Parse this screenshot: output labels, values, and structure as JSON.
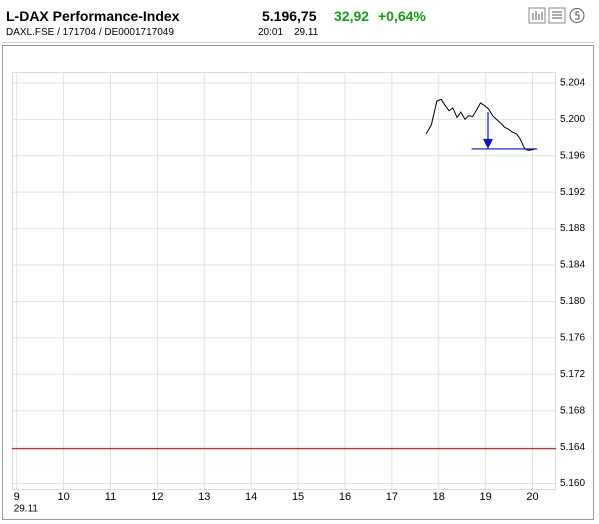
{
  "header": {
    "title": "L-DAX Performance-Index",
    "price": "5.196,75",
    "change": "32,92",
    "change_pct": "+0,64%",
    "symbol": "DAXL.FSE  /  171704  /  DE0001717049",
    "time": "20:01",
    "date": "29.11"
  },
  "chart_data": {
    "type": "line",
    "x": [
      17.73,
      17.84,
      17.96,
      18.05,
      18.13,
      18.22,
      18.3,
      18.39,
      18.47,
      18.56,
      18.64,
      18.72,
      18.81,
      18.89,
      18.98,
      19.06,
      19.15,
      19.23,
      19.32,
      19.4,
      19.49,
      19.57,
      19.66,
      19.74,
      19.83,
      19.91,
      20.04
    ],
    "series": [
      {
        "color": "#000000",
        "values": [
          5198.41,
          5199.36,
          5202.0,
          5202.2,
          5201.57,
          5200.94,
          5201.26,
          5200.2,
          5200.8,
          5200.0,
          5200.4,
          5200.3,
          5201.05,
          5201.8,
          5201.5,
          5201.15,
          5200.4,
          5200.0,
          5199.6,
          5199.15,
          5198.9,
          5198.6,
          5198.4,
          5197.8,
          5196.8,
          5196.6,
          5196.7
        ]
      }
    ],
    "xlim": [
      8.9,
      20.5
    ],
    "xticks": [
      9,
      10,
      11,
      12,
      13,
      14,
      15,
      16,
      17,
      18,
      19,
      20
    ],
    "x_date_label": "29.11",
    "ylim": [
      5159.4,
      5205.2
    ],
    "yticks": [
      {
        "value": 5160,
        "label": "5.160"
      },
      {
        "value": 5164,
        "label": "5.164"
      },
      {
        "value": 5168,
        "label": "5.168"
      },
      {
        "value": 5172,
        "label": "5.172"
      },
      {
        "value": 5176,
        "label": "5.176"
      },
      {
        "value": 5180,
        "label": "5.180"
      },
      {
        "value": 5184,
        "label": "5.184"
      },
      {
        "value": 5188,
        "label": "5.188"
      },
      {
        "value": 5192,
        "label": "5.192"
      },
      {
        "value": 5196,
        "label": "5.196"
      },
      {
        "value": 5200,
        "label": "5.200"
      },
      {
        "value": 5204,
        "label": "5.204"
      }
    ],
    "grid": true,
    "previous_close": {
      "value": 5163.83,
      "color": "#a02020"
    },
    "last_line": {
      "value": 5196.75,
      "x": [
        18.7,
        20.1
      ],
      "arrow_x": 19.05,
      "color": "#1010c0"
    }
  }
}
